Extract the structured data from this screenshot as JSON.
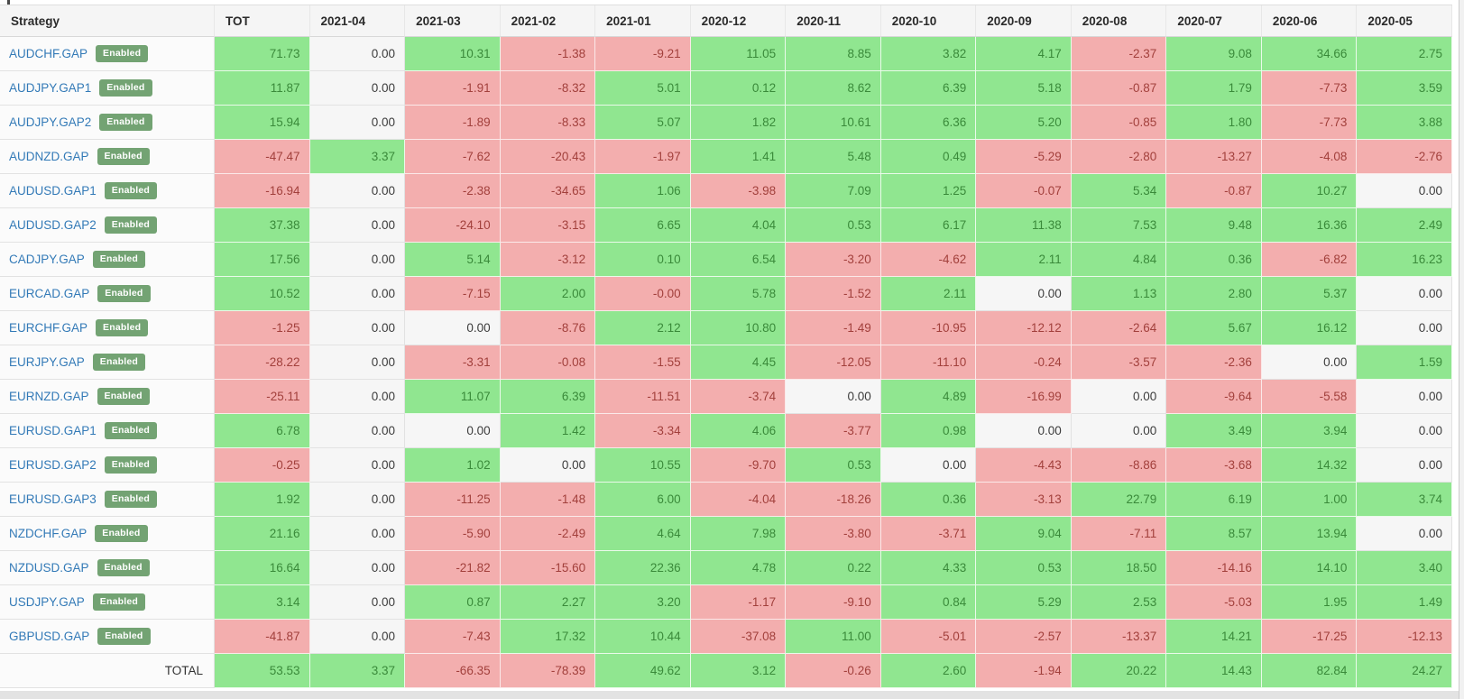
{
  "table": {
    "columns": [
      "Strategy",
      "TOT",
      "2021-04",
      "2021-03",
      "2021-02",
      "2021-01",
      "2020-12",
      "2020-11",
      "2020-10",
      "2020-09",
      "2020-08",
      "2020-07",
      "2020-06",
      "2020-05"
    ],
    "badge_label": "Enabled",
    "total_label": "TOTAL",
    "rows": [
      {
        "strategy": "AUDCHF.GAP",
        "status": "Enabled",
        "values": [
          "71.73",
          "0.00",
          "10.31",
          "-1.38",
          "-9.21",
          "11.05",
          "8.85",
          "3.82",
          "4.17",
          "-2.37",
          "9.08",
          "34.66",
          "2.75"
        ]
      },
      {
        "strategy": "AUDJPY.GAP1",
        "status": "Enabled",
        "values": [
          "11.87",
          "0.00",
          "-1.91",
          "-8.32",
          "5.01",
          "0.12",
          "8.62",
          "6.39",
          "5.18",
          "-0.87",
          "1.79",
          "-7.73",
          "3.59"
        ]
      },
      {
        "strategy": "AUDJPY.GAP2",
        "status": "Enabled",
        "values": [
          "15.94",
          "0.00",
          "-1.89",
          "-8.33",
          "5.07",
          "1.82",
          "10.61",
          "6.36",
          "5.20",
          "-0.85",
          "1.80",
          "-7.73",
          "3.88"
        ]
      },
      {
        "strategy": "AUDNZD.GAP",
        "status": "Enabled",
        "values": [
          "-47.47",
          "3.37",
          "-7.62",
          "-20.43",
          "-1.97",
          "1.41",
          "5.48",
          "0.49",
          "-5.29",
          "-2.80",
          "-13.27",
          "-4.08",
          "-2.76"
        ]
      },
      {
        "strategy": "AUDUSD.GAP1",
        "status": "Enabled",
        "values": [
          "-16.94",
          "0.00",
          "-2.38",
          "-34.65",
          "1.06",
          "-3.98",
          "7.09",
          "1.25",
          "-0.07",
          "5.34",
          "-0.87",
          "10.27",
          "0.00"
        ]
      },
      {
        "strategy": "AUDUSD.GAP2",
        "status": "Enabled",
        "values": [
          "37.38",
          "0.00",
          "-24.10",
          "-3.15",
          "6.65",
          "4.04",
          "0.53",
          "6.17",
          "11.38",
          "7.53",
          "9.48",
          "16.36",
          "2.49"
        ]
      },
      {
        "strategy": "CADJPY.GAP",
        "status": "Enabled",
        "values": [
          "17.56",
          "0.00",
          "5.14",
          "-3.12",
          "0.10",
          "6.54",
          "-3.20",
          "-4.62",
          "2.11",
          "4.84",
          "0.36",
          "-6.82",
          "16.23"
        ]
      },
      {
        "strategy": "EURCAD.GAP",
        "status": "Enabled",
        "values": [
          "10.52",
          "0.00",
          "-7.15",
          "2.00",
          "-0.00",
          "5.78",
          "-1.52",
          "2.11",
          "0.00",
          "1.13",
          "2.80",
          "5.37",
          "0.00"
        ]
      },
      {
        "strategy": "EURCHF.GAP",
        "status": "Enabled",
        "values": [
          "-1.25",
          "0.00",
          "0.00",
          "-8.76",
          "2.12",
          "10.80",
          "-1.49",
          "-10.95",
          "-12.12",
          "-2.64",
          "5.67",
          "16.12",
          "0.00"
        ]
      },
      {
        "strategy": "EURJPY.GAP",
        "status": "Enabled",
        "values": [
          "-28.22",
          "0.00",
          "-3.31",
          "-0.08",
          "-1.55",
          "4.45",
          "-12.05",
          "-11.10",
          "-0.24",
          "-3.57",
          "-2.36",
          "0.00",
          "1.59"
        ]
      },
      {
        "strategy": "EURNZD.GAP",
        "status": "Enabled",
        "values": [
          "-25.11",
          "0.00",
          "11.07",
          "6.39",
          "-11.51",
          "-3.74",
          "0.00",
          "4.89",
          "-16.99",
          "0.00",
          "-9.64",
          "-5.58",
          "0.00"
        ]
      },
      {
        "strategy": "EURUSD.GAP1",
        "status": "Enabled",
        "values": [
          "6.78",
          "0.00",
          "0.00",
          "1.42",
          "-3.34",
          "4.06",
          "-3.77",
          "0.98",
          "0.00",
          "0.00",
          "3.49",
          "3.94",
          "0.00"
        ]
      },
      {
        "strategy": "EURUSD.GAP2",
        "status": "Enabled",
        "values": [
          "-0.25",
          "0.00",
          "1.02",
          "0.00",
          "10.55",
          "-9.70",
          "0.53",
          "0.00",
          "-4.43",
          "-8.86",
          "-3.68",
          "14.32",
          "0.00"
        ]
      },
      {
        "strategy": "EURUSD.GAP3",
        "status": "Enabled",
        "values": [
          "1.92",
          "0.00",
          "-11.25",
          "-1.48",
          "6.00",
          "-4.04",
          "-18.26",
          "0.36",
          "-3.13",
          "22.79",
          "6.19",
          "1.00",
          "3.74"
        ]
      },
      {
        "strategy": "NZDCHF.GAP",
        "status": "Enabled",
        "values": [
          "21.16",
          "0.00",
          "-5.90",
          "-2.49",
          "4.64",
          "7.98",
          "-3.80",
          "-3.71",
          "9.04",
          "-7.11",
          "8.57",
          "13.94",
          "0.00"
        ]
      },
      {
        "strategy": "NZDUSD.GAP",
        "status": "Enabled",
        "values": [
          "16.64",
          "0.00",
          "-21.82",
          "-15.60",
          "22.36",
          "4.78",
          "0.22",
          "4.33",
          "0.53",
          "18.50",
          "-14.16",
          "14.10",
          "3.40"
        ]
      },
      {
        "strategy": "USDJPY.GAP",
        "status": "Enabled",
        "values": [
          "3.14",
          "0.00",
          "0.87",
          "2.27",
          "3.20",
          "-1.17",
          "-9.10",
          "0.84",
          "5.29",
          "2.53",
          "-5.03",
          "1.95",
          "1.49"
        ]
      },
      {
        "strategy": "GBPUSD.GAP",
        "status": "Enabled",
        "values": [
          "-41.87",
          "0.00",
          "-7.43",
          "17.32",
          "10.44",
          "-37.08",
          "11.00",
          "-5.01",
          "-2.57",
          "-13.37",
          "14.21",
          "-17.25",
          "-12.13"
        ]
      }
    ],
    "total_values": [
      "53.53",
      "3.37",
      "-66.35",
      "-78.39",
      "49.62",
      "3.12",
      "-0.26",
      "2.60",
      "-1.94",
      "20.22",
      "14.43",
      "82.84",
      "24.27"
    ]
  },
  "colors": {
    "positive_bg": "#90e690",
    "positive_text": "#3a8a3a",
    "negative_bg": "#f3aeae",
    "negative_text": "#a2403c",
    "zero_bg": "#f6f6f6",
    "link_blue": "#337ab7",
    "badge_green": "#73a373",
    "header_bg": "#f5f5f5"
  }
}
